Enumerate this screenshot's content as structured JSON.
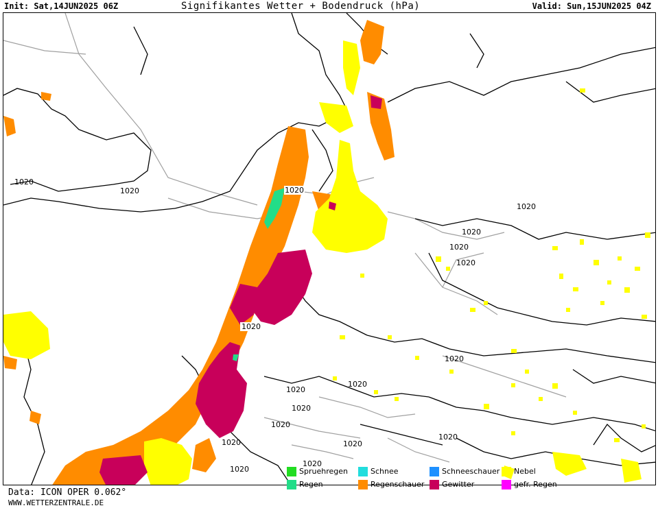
{
  "header": {
    "init": "Init: Sat,14JUN2025 06Z",
    "title": "Signifikantes Wetter + Bodendruck (hPa)",
    "valid": "Valid: Sun,15JUN2025 04Z"
  },
  "footer": {
    "data": "Data: ICON OPER 0.062°",
    "url": "WWW.WETTERZENTRALE.DE"
  },
  "legend": [
    {
      "label": "Spruehregen",
      "color": "#22dd22"
    },
    {
      "label": "Regen",
      "color": "#22dd88"
    },
    {
      "label": "Schnee",
      "color": "#22dddd"
    },
    {
      "label": "Regenschauer",
      "color": "#ff8c00"
    },
    {
      "label": "Schneeschauer",
      "color": "#1e90ff"
    },
    {
      "label": "Gewitter",
      "color": "#c8005a"
    },
    {
      "label": "Nebel",
      "color": "#ffff00"
    },
    {
      "label": "gefr. Regen",
      "color": "#ff00ff"
    }
  ],
  "isobars": [
    "1020",
    "1020",
    "1020",
    "1020",
    "1020",
    "1020",
    "1020",
    "1020",
    "1020",
    "1020",
    "1020",
    "1020",
    "1020",
    "1020",
    "1020",
    "1020",
    "1020",
    "1020"
  ]
}
